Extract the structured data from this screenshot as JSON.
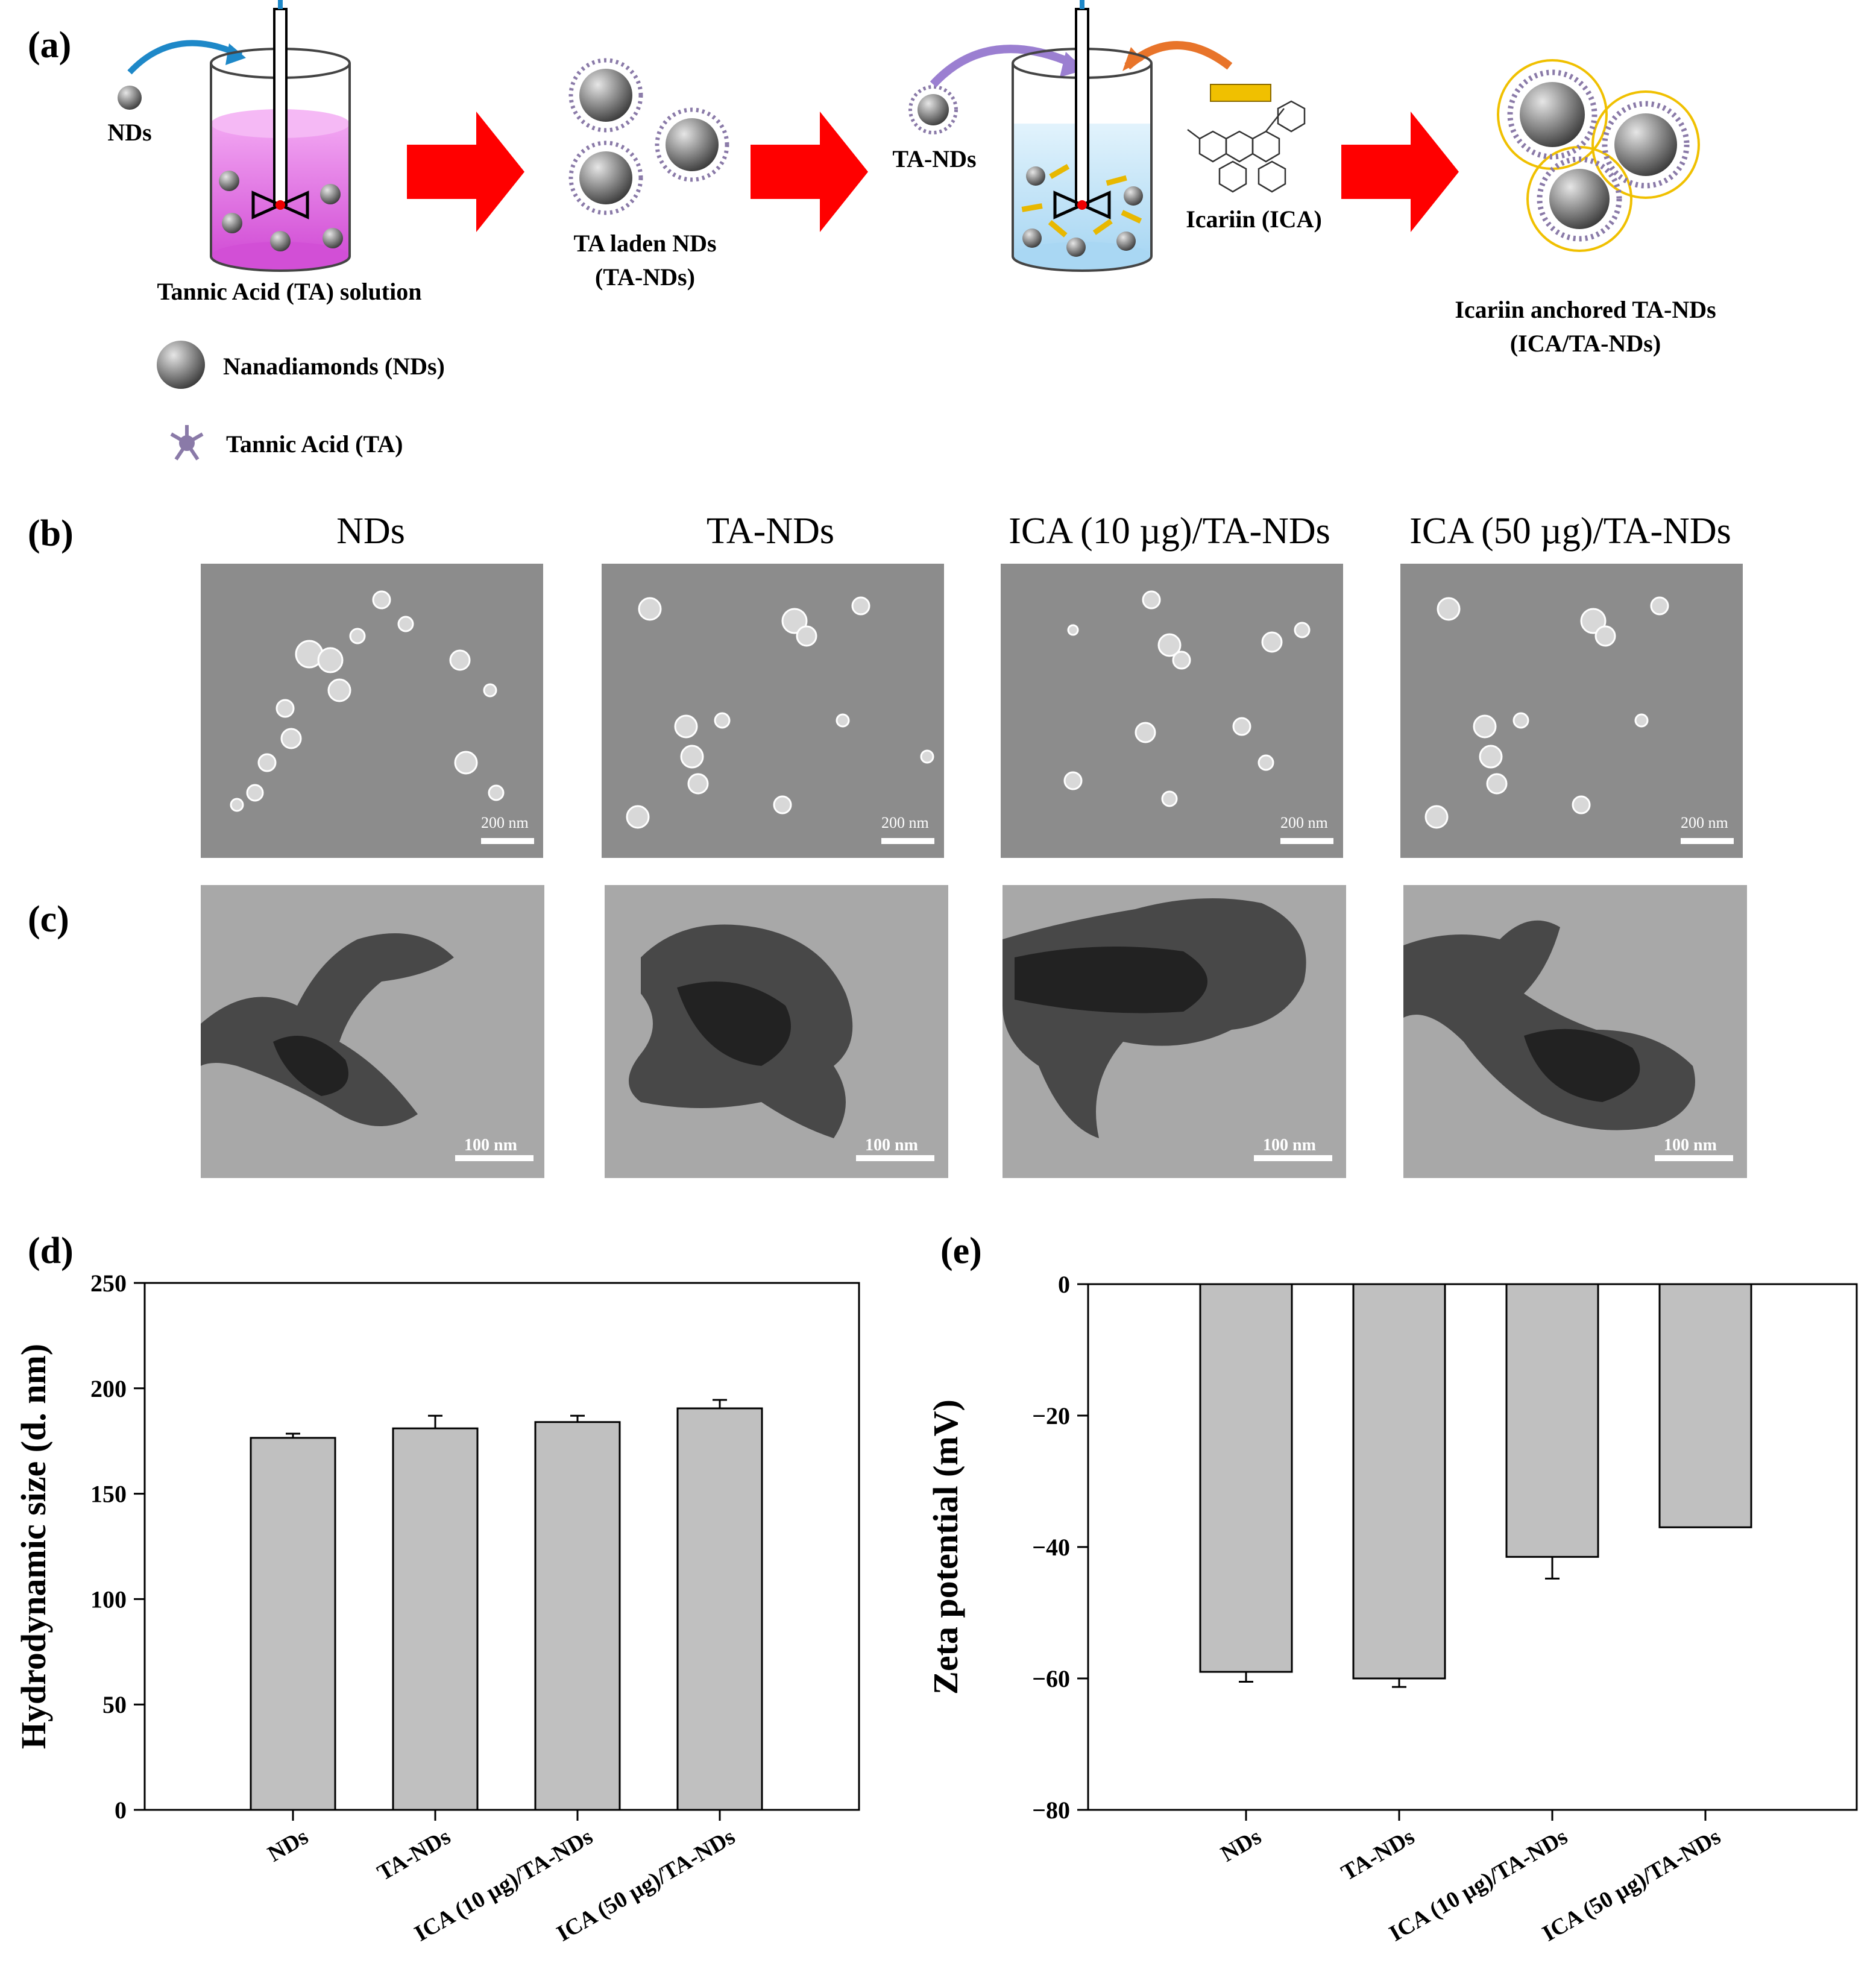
{
  "panels": {
    "a": "(a)",
    "b": "(b)",
    "c": "(c)",
    "d": "(d)",
    "e": "(e)"
  },
  "schematic": {
    "nds_label": "NDs",
    "ta_solution": "Tannic Acid (TA) solution",
    "ta_laden_1": "TA laden NDs",
    "ta_laden_2": "(TA-NDs)",
    "ta_nds": "TA-NDs",
    "icariin": "Icariin (ICA)",
    "anchored_1": "Icariin anchored TA-NDs",
    "anchored_2": "(ICA/TA-NDs)",
    "legend_nd": "Nanadiamonds (NDs)",
    "legend_ta": "Tannic Acid (TA)",
    "colors": {
      "arrow": "#ff0000",
      "ta_solution": "#e266e6",
      "ica_solution": "#bfe3f7",
      "ica_rod": "#e8b800",
      "ta_shell": "#8a7aa8"
    }
  },
  "columns": [
    "NDs",
    "TA-NDs",
    "ICA (10 µg)/TA-NDs",
    "ICA (50 µg)/TA-NDs"
  ],
  "sem_scale": "200 nm",
  "tem_scale": "100 nm",
  "chart_data": [
    {
      "type": "bar",
      "categories": [
        "NDs",
        "TA-NDs",
        "ICA (10 µg)/TA-NDs",
        "ICA (50 µg)/TA-NDs"
      ],
      "values": [
        176.5,
        181,
        184,
        190.5
      ],
      "errors": [
        2,
        6,
        3,
        4
      ],
      "ylabel": "Hydrodynamic size (d. nm)",
      "ylim": [
        0,
        250
      ],
      "yticks": [
        "0",
        "50",
        "100",
        "150",
        "200",
        "250"
      ],
      "bar_color": "#c0c0c0"
    },
    {
      "type": "bar",
      "categories": [
        "NDs",
        "TA-NDs",
        "ICA (10 µg)/TA-NDs",
        "ICA (50 µg)/TA-NDs"
      ],
      "values": [
        -59,
        -60,
        -41.5,
        -37
      ],
      "errors": [
        1.5,
        1.3,
        3.3,
        0
      ],
      "ylabel": "Zeta potential (mV)",
      "ylim": [
        -80,
        0
      ],
      "yticks": [
        "0",
        "−20",
        "−40",
        "−60",
        "−80"
      ],
      "bar_color": "#c0c0c0"
    }
  ]
}
